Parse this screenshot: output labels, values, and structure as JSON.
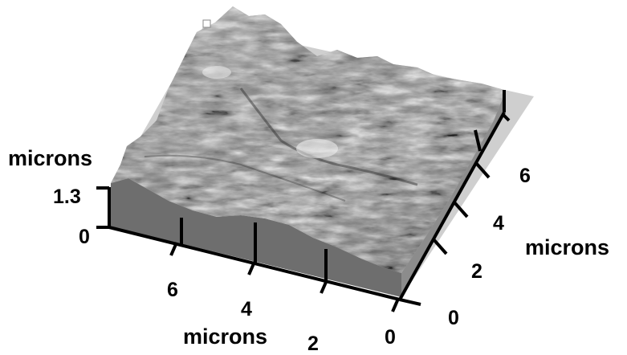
{
  "figure": {
    "z_axis": {
      "title": "microns",
      "ticks": [
        "1.3",
        "0"
      ],
      "max_value": 1.3
    },
    "x_axis": {
      "title": "microns",
      "ticks": [
        "6",
        "4",
        "2",
        "0"
      ]
    },
    "y_axis": {
      "title": "microns",
      "ticks": [
        "6",
        "4",
        "2",
        "0"
      ]
    },
    "colors": {
      "surface_light": "#f2f2f2",
      "surface_dark": "#2a2a2a",
      "front_face": "#6e6e6e",
      "floor_shadow": "#cfcfcf",
      "axes": "#000000"
    }
  }
}
